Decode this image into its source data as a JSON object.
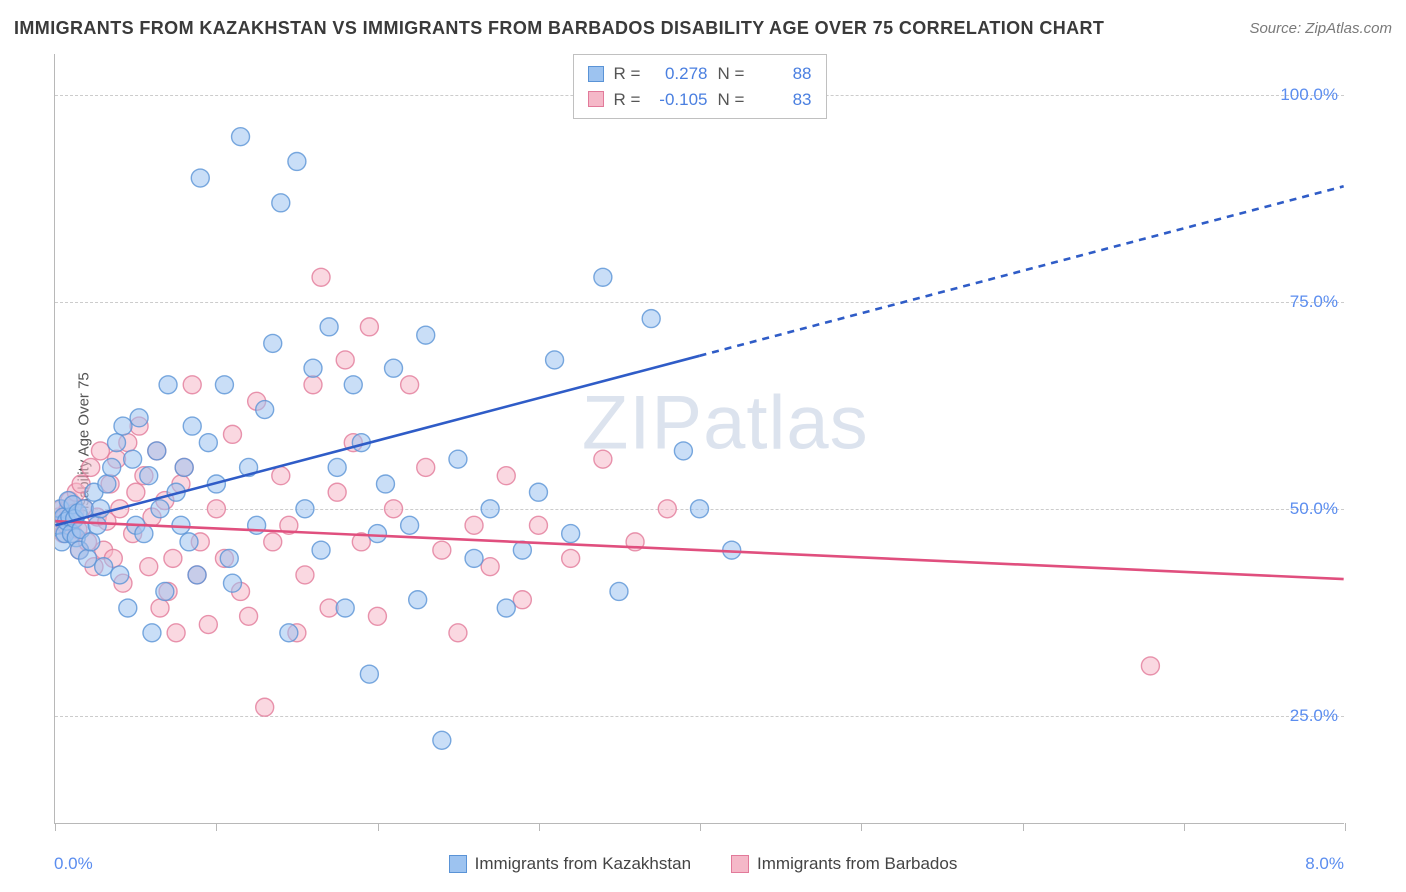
{
  "title": "IMMIGRANTS FROM KAZAKHSTAN VS IMMIGRANTS FROM BARBADOS DISABILITY AGE OVER 75 CORRELATION CHART",
  "source": "Source: ZipAtlas.com",
  "y_axis_label": "Disability Age Over 75",
  "watermark": "ZIPatlas",
  "chart": {
    "type": "scatter-with-regression",
    "xlim": [
      0.0,
      8.0
    ],
    "ylim": [
      12.0,
      105.0
    ],
    "y_gridlines": [
      25.0,
      50.0,
      75.0,
      100.0
    ],
    "y_tick_labels": [
      "25.0%",
      "50.0%",
      "75.0%",
      "100.0%"
    ],
    "x_tick_positions": [
      0.0,
      1.0,
      2.0,
      3.0,
      4.0,
      5.0,
      6.0,
      7.0,
      8.0
    ],
    "x_end_labels": [
      "0.0%",
      "8.0%"
    ],
    "background_color": "#ffffff",
    "grid_color": "#cccccc",
    "axis_color": "#b8b8b8",
    "label_color": "#5b8def",
    "marker_radius": 9,
    "marker_opacity": 0.55,
    "marker_stroke_width": 1.4,
    "trend_line_width": 2.6
  },
  "series": [
    {
      "name": "Immigrants from Kazakhstan",
      "key": "kazakhstan",
      "fill_color": "#9dc3f0",
      "stroke_color": "#5a93d6",
      "line_color": "#2f5cc7",
      "R": "0.278",
      "N": "88",
      "trend": {
        "x1": 0.0,
        "y1": 48.0,
        "x2": 4.0,
        "y2": 68.5,
        "x2_dash": 8.0,
        "y2_dash": 89.0
      },
      "points": [
        [
          0.02,
          48
        ],
        [
          0.03,
          50
        ],
        [
          0.04,
          46
        ],
        [
          0.05,
          49
        ],
        [
          0.06,
          47
        ],
        [
          0.07,
          48.5
        ],
        [
          0.08,
          51
        ],
        [
          0.09,
          49
        ],
        [
          0.1,
          47
        ],
        [
          0.11,
          50.5
        ],
        [
          0.12,
          48.8
        ],
        [
          0.13,
          46.5
        ],
        [
          0.14,
          49.5
        ],
        [
          0.15,
          45
        ],
        [
          0.16,
          47.5
        ],
        [
          0.18,
          50
        ],
        [
          0.2,
          44
        ],
        [
          0.22,
          46
        ],
        [
          0.24,
          52
        ],
        [
          0.26,
          48
        ],
        [
          0.28,
          50
        ],
        [
          0.3,
          43
        ],
        [
          0.32,
          53
        ],
        [
          0.35,
          55
        ],
        [
          0.38,
          58
        ],
        [
          0.4,
          42
        ],
        [
          0.42,
          60
        ],
        [
          0.45,
          38
        ],
        [
          0.48,
          56
        ],
        [
          0.5,
          48
        ],
        [
          0.52,
          61
        ],
        [
          0.55,
          47
        ],
        [
          0.58,
          54
        ],
        [
          0.6,
          35
        ],
        [
          0.63,
          57
        ],
        [
          0.65,
          50
        ],
        [
          0.68,
          40
        ],
        [
          0.7,
          65
        ],
        [
          0.75,
          52
        ],
        [
          0.78,
          48
        ],
        [
          0.8,
          55
        ],
        [
          0.83,
          46
        ],
        [
          0.85,
          60
        ],
        [
          0.88,
          42
        ],
        [
          0.9,
          90
        ],
        [
          0.95,
          58
        ],
        [
          1.0,
          53
        ],
        [
          1.05,
          65
        ],
        [
          1.08,
          44
        ],
        [
          1.1,
          41
        ],
        [
          1.15,
          95
        ],
        [
          1.2,
          55
        ],
        [
          1.25,
          48
        ],
        [
          1.3,
          62
        ],
        [
          1.35,
          70
        ],
        [
          1.4,
          87
        ],
        [
          1.45,
          35
        ],
        [
          1.5,
          92
        ],
        [
          1.55,
          50
        ],
        [
          1.6,
          67
        ],
        [
          1.65,
          45
        ],
        [
          1.7,
          72
        ],
        [
          1.75,
          55
        ],
        [
          1.8,
          38
        ],
        [
          1.85,
          65
        ],
        [
          1.9,
          58
        ],
        [
          1.95,
          30
        ],
        [
          2.0,
          47
        ],
        [
          2.05,
          53
        ],
        [
          2.1,
          67
        ],
        [
          2.2,
          48
        ],
        [
          2.25,
          39
        ],
        [
          2.3,
          71
        ],
        [
          2.4,
          22
        ],
        [
          2.5,
          56
        ],
        [
          2.6,
          44
        ],
        [
          2.7,
          50
        ],
        [
          2.8,
          38
        ],
        [
          2.9,
          45
        ],
        [
          3.0,
          52
        ],
        [
          3.1,
          68
        ],
        [
          3.2,
          47
        ],
        [
          3.4,
          78
        ],
        [
          3.5,
          40
        ],
        [
          3.7,
          73
        ],
        [
          3.9,
          57
        ],
        [
          4.0,
          50
        ],
        [
          4.2,
          45
        ]
      ]
    },
    {
      "name": "Immigrants from Barbados",
      "key": "barbados",
      "fill_color": "#f5b8c8",
      "stroke_color": "#e27a9a",
      "line_color": "#e04f7e",
      "R": "-0.105",
      "N": "83",
      "trend": {
        "x1": 0.0,
        "y1": 48.5,
        "x2": 8.0,
        "y2": 41.5
      },
      "points": [
        [
          0.02,
          49
        ],
        [
          0.03,
          48
        ],
        [
          0.04,
          50
        ],
        [
          0.05,
          47
        ],
        [
          0.06,
          49
        ],
        [
          0.07,
          48
        ],
        [
          0.08,
          50
        ],
        [
          0.09,
          51
        ],
        [
          0.1,
          48.5
        ],
        [
          0.11,
          47
        ],
        [
          0.12,
          49.5
        ],
        [
          0.13,
          52
        ],
        [
          0.14,
          47.5
        ],
        [
          0.15,
          45
        ],
        [
          0.16,
          53
        ],
        [
          0.18,
          50
        ],
        [
          0.2,
          46
        ],
        [
          0.22,
          55
        ],
        [
          0.24,
          43
        ],
        [
          0.26,
          49
        ],
        [
          0.28,
          57
        ],
        [
          0.3,
          45
        ],
        [
          0.32,
          48.5
        ],
        [
          0.34,
          53
        ],
        [
          0.36,
          44
        ],
        [
          0.38,
          56
        ],
        [
          0.4,
          50
        ],
        [
          0.42,
          41
        ],
        [
          0.45,
          58
        ],
        [
          0.48,
          47
        ],
        [
          0.5,
          52
        ],
        [
          0.52,
          60
        ],
        [
          0.55,
          54
        ],
        [
          0.58,
          43
        ],
        [
          0.6,
          49
        ],
        [
          0.63,
          57
        ],
        [
          0.65,
          38
        ],
        [
          0.68,
          51
        ],
        [
          0.7,
          40
        ],
        [
          0.73,
          44
        ],
        [
          0.75,
          35
        ],
        [
          0.78,
          53
        ],
        [
          0.8,
          55
        ],
        [
          0.85,
          65
        ],
        [
          0.88,
          42
        ],
        [
          0.9,
          46
        ],
        [
          0.95,
          36
        ],
        [
          1.0,
          50
        ],
        [
          1.05,
          44
        ],
        [
          1.1,
          59
        ],
        [
          1.15,
          40
        ],
        [
          1.2,
          37
        ],
        [
          1.25,
          63
        ],
        [
          1.3,
          26
        ],
        [
          1.35,
          46
        ],
        [
          1.4,
          54
        ],
        [
          1.45,
          48
        ],
        [
          1.5,
          35
        ],
        [
          1.55,
          42
        ],
        [
          1.6,
          65
        ],
        [
          1.65,
          78
        ],
        [
          1.7,
          38
        ],
        [
          1.75,
          52
        ],
        [
          1.8,
          68
        ],
        [
          1.85,
          58
        ],
        [
          1.9,
          46
        ],
        [
          1.95,
          72
        ],
        [
          2.0,
          37
        ],
        [
          2.1,
          50
        ],
        [
          2.2,
          65
        ],
        [
          2.3,
          55
        ],
        [
          2.4,
          45
        ],
        [
          2.5,
          35
        ],
        [
          2.6,
          48
        ],
        [
          2.7,
          43
        ],
        [
          2.8,
          54
        ],
        [
          2.9,
          39
        ],
        [
          3.0,
          48
        ],
        [
          3.2,
          44
        ],
        [
          3.4,
          56
        ],
        [
          3.6,
          46
        ],
        [
          3.8,
          50
        ],
        [
          6.8,
          31
        ]
      ]
    }
  ],
  "legend": {
    "items": [
      {
        "key": "kazakhstan",
        "label": "Immigrants from Kazakhstan"
      },
      {
        "key": "barbados",
        "label": "Immigrants from Barbados"
      }
    ]
  }
}
